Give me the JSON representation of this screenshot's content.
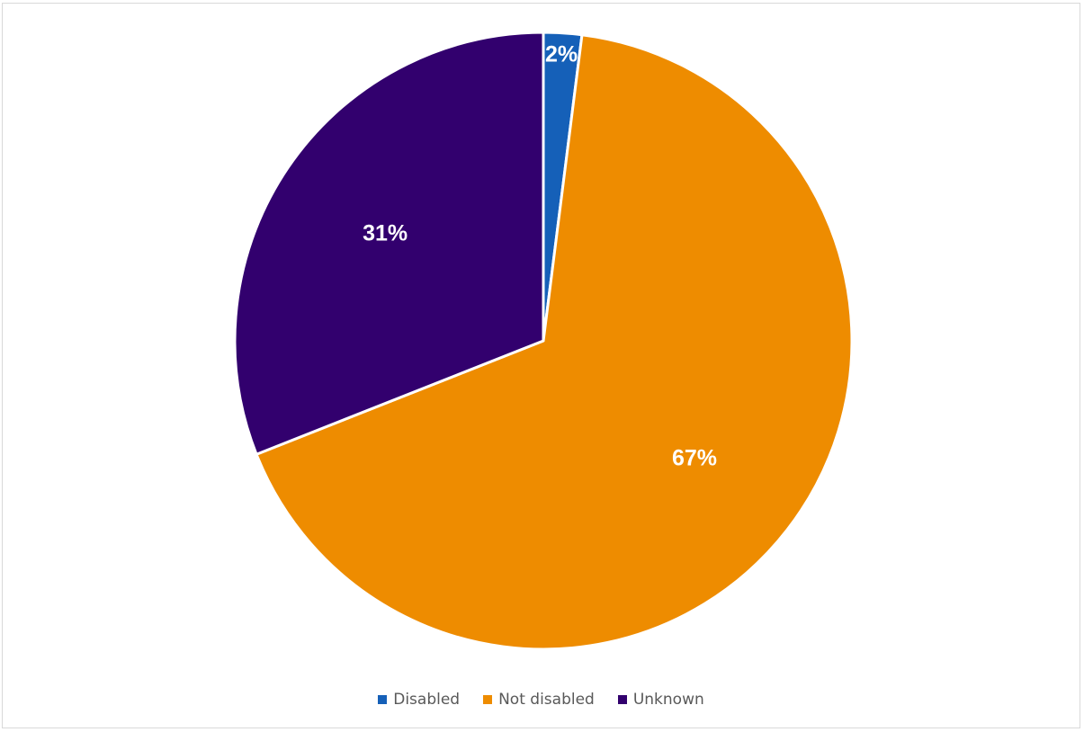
{
  "chart_data": {
    "type": "pie",
    "title": "",
    "categories": [
      "Disabled",
      "Not disabled",
      "Unknown"
    ],
    "values": [
      2,
      67,
      31
    ],
    "data_labels": [
      "2%",
      "67%",
      "31%"
    ],
    "colors": [
      "#1560b8",
      "#ee8c00",
      "#32006e"
    ],
    "legend_position": "bottom"
  }
}
